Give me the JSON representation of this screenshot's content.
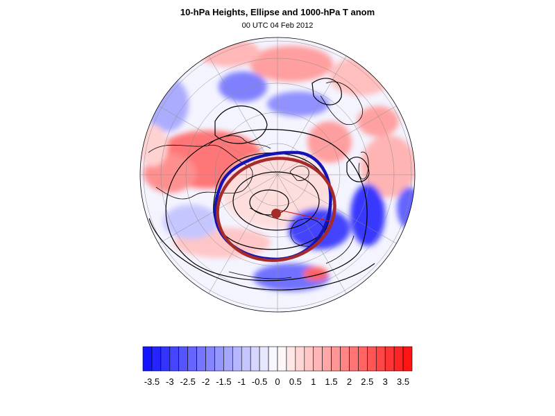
{
  "title": "10-hPa Heights, Ellipse and 1000-hPa T anom",
  "subtitle": "00 UTC 04 Feb 2012",
  "map": {
    "projection": "orthographic-north-polar",
    "grid": true,
    "field": "1000-hPa T anom",
    "contours": "10-hPa Heights",
    "ellipse_color": "#a52a2a",
    "contour_highlight_color": "#1414b4",
    "coastline_color": "#000000"
  },
  "colorbar": {
    "min": -3.75,
    "max": 3.75,
    "step": 0.25,
    "colors": {
      "negative": "#1414ff",
      "neutral": "#ffffff",
      "positive": "#ff1414"
    },
    "tick_labels": [
      "-3.5",
      "-3",
      "-2.5",
      "-2",
      "-1.5",
      "-1",
      "-0.5",
      "0",
      "0.5",
      "1",
      "1.5",
      "2",
      "2.5",
      "3",
      "3.5"
    ]
  }
}
